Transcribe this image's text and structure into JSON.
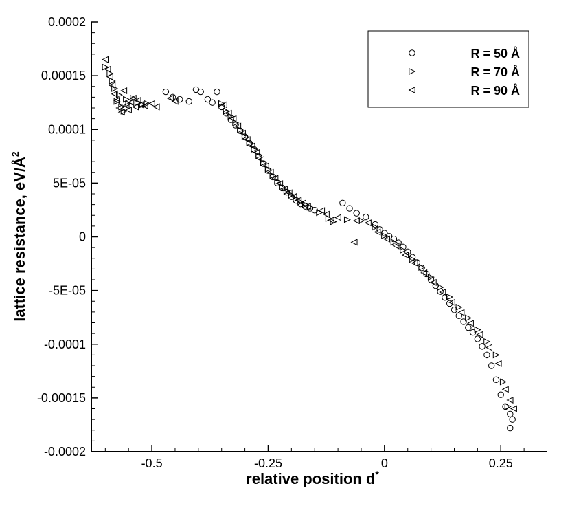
{
  "chart_data": {
    "type": "scatter",
    "xlabel": "relative position d",
    "xlabel_superscript": "*",
    "ylabel": "lattice resistance, eV/Å",
    "ylabel_superscript": "2",
    "xlim": [
      -0.63,
      0.35
    ],
    "ylim": [
      -0.0002,
      0.0002
    ],
    "x_ticks": [
      {
        "value": -0.5,
        "label": "-0.5"
      },
      {
        "value": -0.25,
        "label": "-0.25"
      },
      {
        "value": 0,
        "label": "0"
      },
      {
        "value": 0.25,
        "label": "0.25"
      }
    ],
    "y_ticks": [
      {
        "value": 0.0002,
        "label": "0.0002"
      },
      {
        "value": 0.00015,
        "label": "0.00015"
      },
      {
        "value": 0.0001,
        "label": "0.0001"
      },
      {
        "value": 5e-05,
        "label": "5E-05"
      },
      {
        "value": 0,
        "label": "0"
      },
      {
        "value": -5e-05,
        "label": "-5E-05"
      },
      {
        "value": -0.0001,
        "label": "-0.0001"
      },
      {
        "value": -0.00015,
        "label": "-0.00015"
      },
      {
        "value": -0.0002,
        "label": "-0.0002"
      }
    ],
    "legend_position": "top-right",
    "grid": false,
    "series": [
      {
        "name": "R = 50 Å",
        "marker": "circle",
        "x": [
          -0.47,
          -0.455,
          -0.44,
          -0.42,
          -0.405,
          -0.395,
          -0.38,
          -0.37,
          -0.36,
          -0.35,
          -0.34,
          -0.33,
          -0.32,
          -0.31,
          -0.3,
          -0.29,
          -0.28,
          -0.27,
          -0.26,
          -0.25,
          -0.24,
          -0.23,
          -0.22,
          -0.21,
          -0.2,
          -0.19,
          -0.18,
          -0.17,
          -0.16,
          -0.15,
          -0.09,
          -0.075,
          -0.06,
          -0.04,
          -0.02,
          -0.01,
          0.0,
          0.01,
          0.02,
          0.03,
          0.04,
          0.05,
          0.06,
          0.07,
          0.08,
          0.09,
          0.1,
          0.11,
          0.12,
          0.13,
          0.14,
          0.15,
          0.16,
          0.17,
          0.18,
          0.19,
          0.2,
          0.21,
          0.22,
          0.23,
          0.24,
          0.25,
          0.26,
          0.27,
          0.275,
          0.27
        ],
        "y": [
          0.000135,
          0.00013,
          0.000128,
          0.000126,
          0.000137,
          0.000135,
          0.000128,
          0.000125,
          0.000135,
          0.000121,
          0.000115,
          0.000109,
          0.000104,
          9.87e-05,
          9.31e-05,
          8.71e-05,
          8.13e-05,
          7.47e-05,
          6.81e-05,
          6.17e-05,
          5.57e-05,
          5.01e-05,
          4.55e-05,
          4.16e-05,
          3.73e-05,
          3.39e-05,
          3.06e-05,
          2.84e-05,
          2.65e-05,
          2.48e-05,
          3.15e-05,
          2.65e-05,
          2.2e-05,
          1.85e-05,
          1.15e-05,
          6.8e-06,
          3.5e-06,
          5e-07,
          -2e-06,
          -5.5e-06,
          -9.5e-06,
          -1.4e-05,
          -1.9e-05,
          -2.4e-05,
          -2.9e-05,
          -3.45e-05,
          -4e-05,
          -4.55e-05,
          -5.1e-05,
          -5.65e-05,
          -6.2e-05,
          -6.8e-05,
          -7.35e-05,
          -7.9e-05,
          -8.45e-05,
          -8.9e-05,
          -9.5e-05,
          -0.000102,
          -0.00011,
          -0.00012,
          -0.000133,
          -0.000147,
          -0.000158,
          -0.000165,
          -0.00017,
          -0.000178
        ]
      },
      {
        "name": "R = 70 Å",
        "marker": "triangle-right",
        "x": [
          -0.6,
          -0.59,
          -0.585,
          -0.58,
          -0.575,
          -0.57,
          -0.565,
          -0.56,
          -0.555,
          -0.55,
          -0.54,
          -0.53,
          -0.52,
          -0.51,
          -0.35,
          -0.34,
          -0.33,
          -0.32,
          -0.31,
          -0.3,
          -0.29,
          -0.28,
          -0.27,
          -0.26,
          -0.25,
          -0.24,
          -0.23,
          -0.22,
          -0.21,
          -0.2,
          -0.19,
          -0.18,
          -0.17,
          -0.16,
          -0.14,
          -0.12,
          -0.11,
          -0.08,
          -0.05,
          -0.02,
          0.0,
          0.02,
          0.04,
          0.06,
          0.08,
          0.1,
          0.12,
          0.14,
          0.16,
          0.18,
          0.2,
          0.22,
          0.24,
          0.255,
          0.265
        ],
        "y": [
          0.000158,
          0.000152,
          0.000145,
          0.000138,
          0.000126,
          0.000132,
          0.000121,
          0.000117,
          0.000128,
          0.000124,
          0.000129,
          0.000125,
          0.000123,
          0.000124,
          0.000124,
          0.000117,
          0.000112,
          0.000106,
          9.95e-05,
          9.35e-05,
          8.75e-05,
          8.15e-05,
          7.55e-05,
          6.9e-05,
          6.3e-05,
          5.7e-05,
          5.15e-05,
          4.65e-05,
          4.25e-05,
          3.9e-05,
          3.55e-05,
          3.25e-05,
          3e-05,
          2.75e-05,
          2.25e-05,
          1.7e-05,
          1.4e-05,
          1.6e-05,
          1.5e-05,
          9e-06,
          1e-06,
          -5e-06,
          -1.25e-05,
          -2.1e-05,
          -2.85e-05,
          -3.75e-05,
          -4.7e-05,
          -5.6e-05,
          -6.55e-05,
          -7.55e-05,
          -8.65e-05,
          -9.75e-05,
          -0.00011,
          -0.000135,
          -0.000158
        ]
      },
      {
        "name": "R = 90 Å",
        "marker": "triangle-left",
        "x": [
          -0.6,
          -0.595,
          -0.59,
          -0.585,
          -0.58,
          -0.575,
          -0.57,
          -0.565,
          -0.56,
          -0.555,
          -0.55,
          -0.545,
          -0.54,
          -0.535,
          -0.53,
          -0.525,
          -0.515,
          -0.5,
          -0.49,
          -0.46,
          -0.45,
          -0.345,
          -0.335,
          -0.325,
          -0.315,
          -0.305,
          -0.295,
          -0.285,
          -0.275,
          -0.265,
          -0.255,
          -0.245,
          -0.235,
          -0.225,
          -0.215,
          -0.205,
          -0.195,
          -0.185,
          -0.175,
          -0.165,
          -0.135,
          -0.125,
          -0.115,
          -0.1,
          -0.065,
          -0.06,
          -0.035,
          -0.015,
          0.005,
          0.025,
          0.045,
          0.065,
          0.085,
          0.105,
          0.125,
          0.145,
          0.165,
          0.185,
          0.205,
          0.225,
          0.245,
          0.26,
          0.27,
          0.278
        ],
        "y": [
          0.000165,
          0.000156,
          0.000149,
          0.000141,
          0.000133,
          0.000127,
          0.00012,
          0.000116,
          0.000136,
          0.000122,
          0.000118,
          0.000125,
          0.000129,
          0.000121,
          0.000127,
          0.000123,
          0.000122,
          0.000124,
          0.000121,
          0.000129,
          0.000126,
          0.000123,
          0.000115,
          0.00011,
          0.000103,
          9.65e-05,
          9.05e-05,
          8.45e-05,
          7.85e-05,
          7.2e-05,
          6.6e-05,
          6e-05,
          5.45e-05,
          4.95e-05,
          4.45e-05,
          4.1e-05,
          3.75e-05,
          3.4e-05,
          3.15e-05,
          2.85e-05,
          2.45e-05,
          2.1e-05,
          1.55e-05,
          1.8e-05,
          -5e-06,
          1.5e-05,
          1.3e-05,
          4.5e-06,
          -2e-06,
          -8.5e-06,
          -1.7e-05,
          -2.45e-05,
          -3.35e-05,
          -4.25e-05,
          -5.15e-05,
          -6.1e-05,
          -7.05e-05,
          -8.05e-05,
          -9.1e-05,
          -0.000103,
          -0.000118,
          -0.000142,
          -0.000152,
          -0.00016
        ]
      }
    ]
  }
}
